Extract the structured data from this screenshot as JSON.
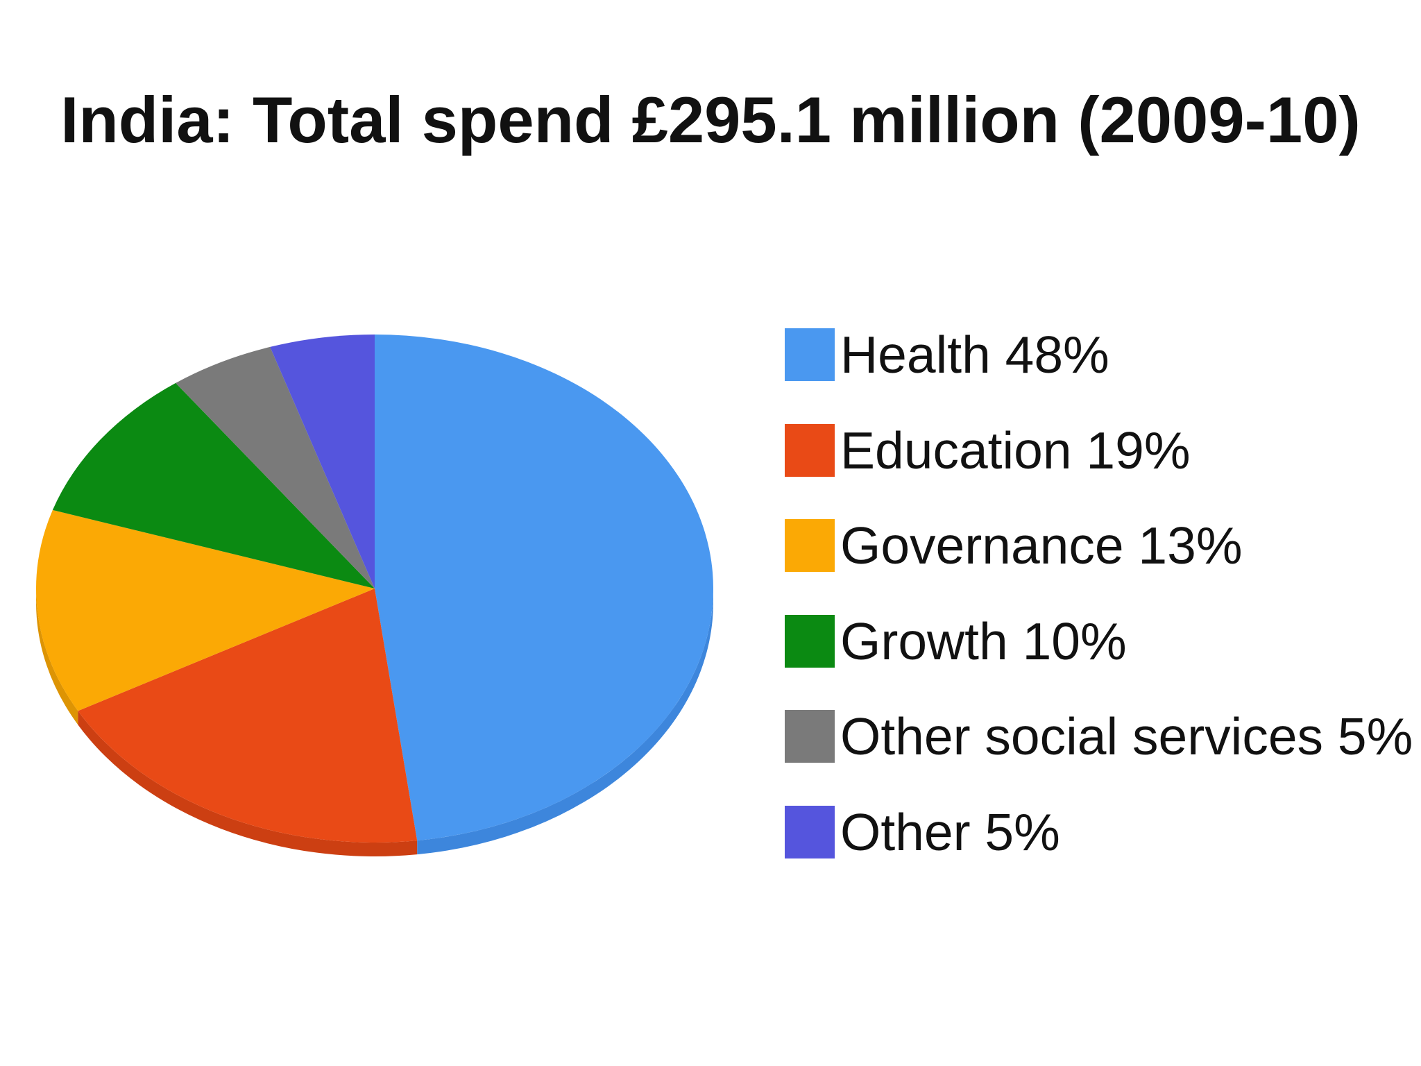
{
  "chart_data": {
    "type": "pie",
    "title": "India: Total spend £295.1 million (2009-10)",
    "slices": [
      {
        "label": "Health 48%",
        "category": "Health",
        "value": 48,
        "color": "#4a98f0",
        "side_color": "#3d86dc"
      },
      {
        "label": "Education 19%",
        "category": "Education",
        "value": 19,
        "color": "#e94a16",
        "side_color": "#cc3f12"
      },
      {
        "label": "Governance 13%",
        "category": "Governance",
        "value": 13,
        "color": "#fba905",
        "side_color": "#dd9404"
      },
      {
        "label": "Growth 10%",
        "category": "Growth",
        "value": 10,
        "color": "#0b8a12",
        "side_color": "#09750f"
      },
      {
        "label": "Other social services 5%",
        "category": "Other social services",
        "value": 5,
        "color": "#7a7a7a",
        "side_color": "#666666"
      },
      {
        "label": "Other 5%",
        "category": "Other",
        "value": 5,
        "color": "#5555dd",
        "side_color": "#4545c0"
      }
    ],
    "legend_position": "right"
  }
}
